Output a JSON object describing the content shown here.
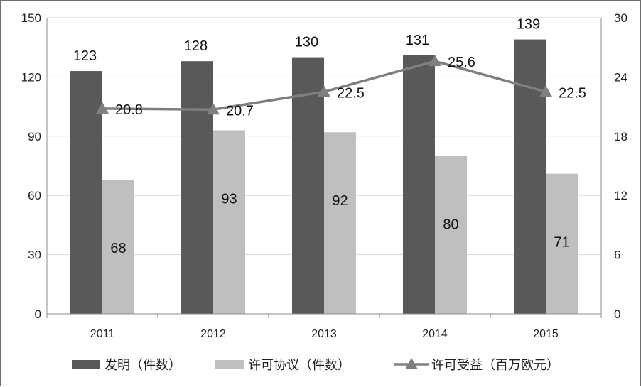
{
  "chart_data": {
    "type": "bar",
    "categories": [
      "2011",
      "2012",
      "2013",
      "2014",
      "2015"
    ],
    "series": [
      {
        "name": "发明（件数）",
        "type": "bar",
        "axis": "left",
        "color": "#595959",
        "values": [
          123,
          128,
          130,
          131,
          139
        ],
        "labels": [
          "123",
          "128",
          "130",
          "131",
          "139"
        ]
      },
      {
        "name": "许可协议（件数）",
        "type": "bar",
        "axis": "left",
        "color": "#bfbfbf",
        "values": [
          68,
          93,
          92,
          80,
          71
        ],
        "labels": [
          "68",
          "93",
          "92",
          "80",
          "71"
        ]
      },
      {
        "name": "许可受益（百万欧元）",
        "type": "line",
        "axis": "right",
        "color": "#7f7f7f",
        "marker": "triangle",
        "values": [
          20.8,
          20.7,
          22.5,
          25.6,
          22.5
        ],
        "labels": [
          "20.8",
          "20.7",
          "22.5",
          "25.6",
          "22.5"
        ]
      }
    ],
    "ylim": [
      0,
      150
    ],
    "yticks": [
      "0",
      "30",
      "60",
      "90",
      "120",
      "150"
    ],
    "y2lim": [
      0,
      30
    ],
    "y2ticks": [
      "0",
      "6",
      "12",
      "18",
      "24",
      "30"
    ],
    "grid": true,
    "legend_position": "bottom"
  }
}
